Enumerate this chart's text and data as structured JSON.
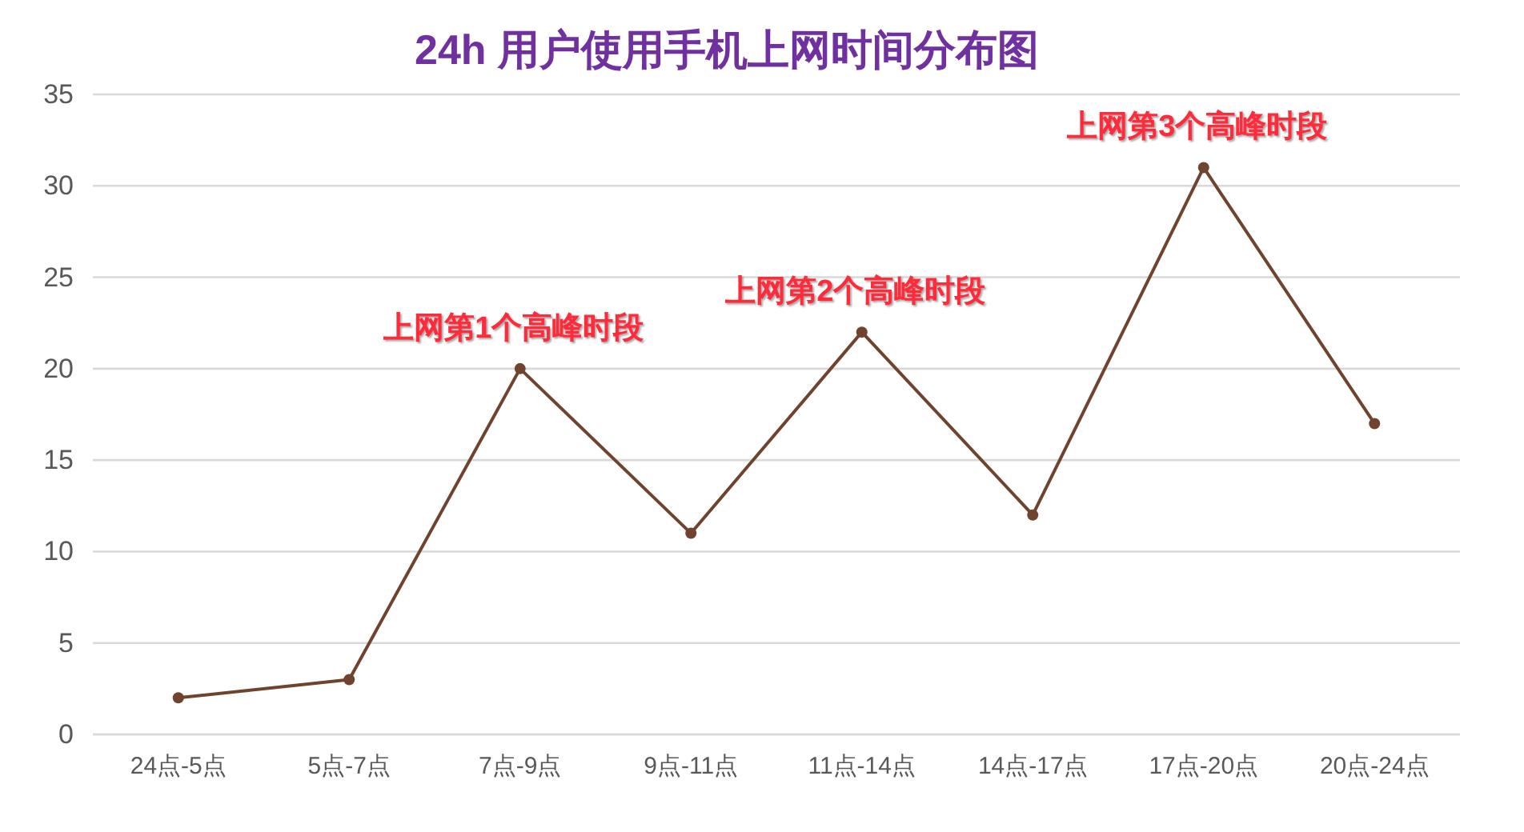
{
  "chart_data": {
    "type": "line",
    "title": "24h 用户使用手机上网时间分布图",
    "categories": [
      "24点-5点",
      "5点-7点",
      "7点-9点",
      "9点-11点",
      "11点-14点",
      "14点-17点",
      "17点-20点",
      "20点-24点"
    ],
    "series": [
      {
        "color": "#70432f",
        "values": [
          2,
          3,
          20,
          11,
          22,
          12,
          31,
          17
        ]
      }
    ],
    "ylim": [
      0,
      35
    ],
    "yticks": [
      0,
      5,
      10,
      15,
      20,
      25,
      30,
      35
    ],
    "grid": "y",
    "marker": "circle",
    "line_style": "solid",
    "annotations": [
      {
        "text": "上网第1个高峰时段",
        "x": "7点-9点",
        "y": 20
      },
      {
        "text": "上网第2个高峰时段",
        "x": "11点-14点",
        "y": 22
      },
      {
        "text": "上网第3个高峰时段",
        "x": "17点-20点",
        "y": 31
      }
    ]
  }
}
